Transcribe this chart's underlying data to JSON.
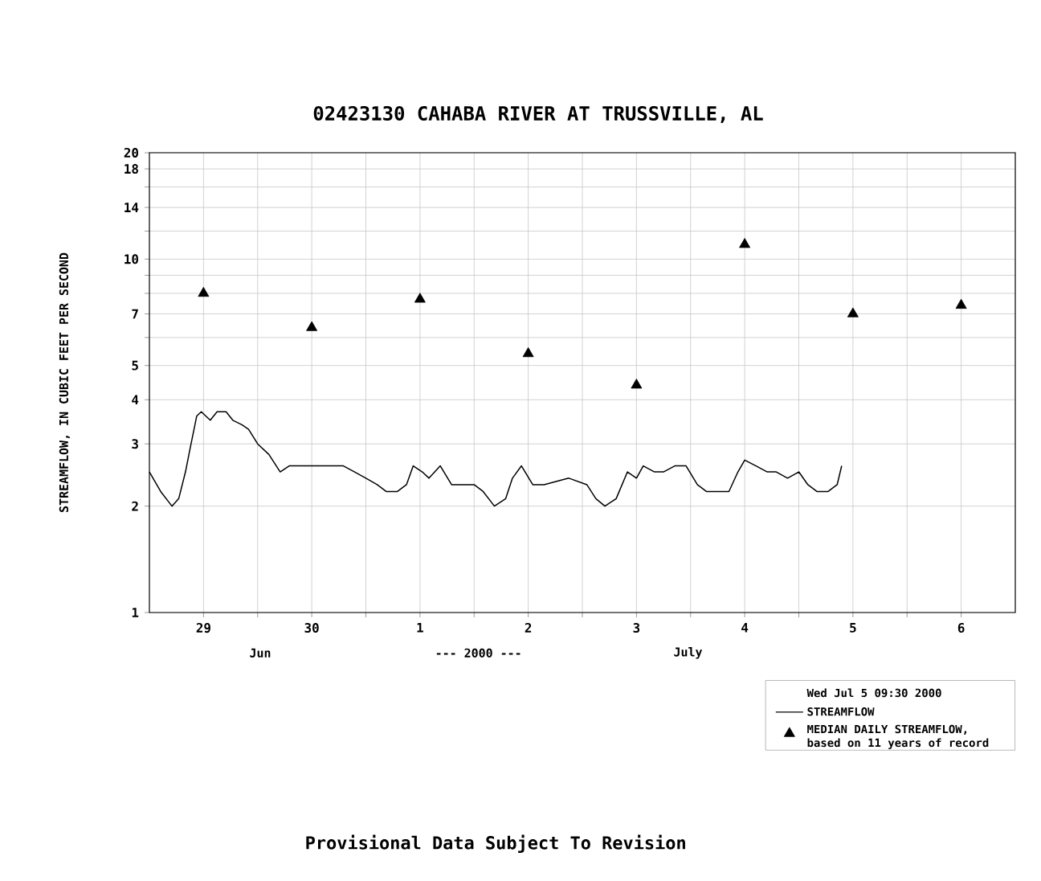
{
  "chart_data": {
    "type": "line",
    "title": "02423130 CAHABA RIVER AT TRUSSVILLE, AL",
    "ylabel": "STREAMFLOW, IN CUBIC FEET PER SECOND",
    "legend_title": "Wed Jul  5 09:30 2000",
    "annotations": [
      "Jun",
      "--- 2000 ---",
      "July",
      "Provisional Data Subject To Revision"
    ],
    "log": "y",
    "grid": true,
    "legend": "bottom right",
    "xlim": [
      "2000-06-29T00:00",
      "2000-07-07T00:00"
    ],
    "xticks": [
      {
        "value": "2000-06-29T12:00",
        "label": "29"
      },
      {
        "value": "2000-06-30T12:00",
        "label": "30"
      },
      {
        "value": "2000-07-01T12:00",
        "label": "1"
      },
      {
        "value": "2000-07-02T12:00",
        "label": "2"
      },
      {
        "value": "2000-07-03T12:00",
        "label": "3"
      },
      {
        "value": "2000-07-04T12:00",
        "label": "4"
      },
      {
        "value": "2000-07-05T12:00",
        "label": "5"
      },
      {
        "value": "2000-07-06T12:00",
        "label": "6"
      },
      {
        "value": "2000-06-30T00:00",
        "label": null
      },
      {
        "value": "2000-07-01T00:00",
        "label": null
      },
      {
        "value": "2000-07-02T00:00",
        "label": null
      },
      {
        "value": "2000-07-03T00:00",
        "label": null
      },
      {
        "value": "2000-07-04T00:00",
        "label": null
      },
      {
        "value": "2000-07-05T00:00",
        "label": null
      },
      {
        "value": "2000-07-06T00:00",
        "label": null
      }
    ],
    "ylim": [
      1,
      20
    ],
    "yticks": [
      1,
      2,
      3,
      4,
      5,
      7,
      10,
      14,
      18,
      20,
      {
        "value": 6,
        "label": null
      },
      {
        "value": 8,
        "label": null
      },
      {
        "value": 9,
        "label": null
      },
      {
        "value": 12,
        "label": null
      },
      {
        "value": 16,
        "label": null
      }
    ],
    "series": [
      {
        "name": "STREAMFLOW",
        "color": "#000000",
        "marker": "none",
        "line_style": "solid",
        "x": [
          "2000-06-29T00:00",
          "2000-06-29T02:30",
          "2000-06-29T05:00",
          "2000-06-29T06:30",
          "2000-06-29T08:00",
          "2000-06-29T09:00",
          "2000-06-29T10:30",
          "2000-06-29T11:30",
          "2000-06-29T13:30",
          "2000-06-29T15:00",
          "2000-06-29T17:00",
          "2000-06-29T18:30",
          "2000-06-29T20:30",
          "2000-06-29T22:00",
          "2000-06-30T00:00",
          "2000-06-30T02:30",
          "2000-06-30T05:00",
          "2000-06-30T07:00",
          "2000-06-30T09:30",
          "2000-06-30T12:00",
          "2000-06-30T14:30",
          "2000-06-30T16:30",
          "2000-06-30T19:00",
          "2000-06-30T21:30",
          "2000-07-01T00:00",
          "2000-07-01T02:30",
          "2000-07-01T04:30",
          "2000-07-01T07:00",
          "2000-07-01T09:00",
          "2000-07-01T10:30",
          "2000-07-01T12:30",
          "2000-07-01T14:00",
          "2000-07-01T16:30",
          "2000-07-01T19:00",
          "2000-07-01T21:30",
          "2000-07-02T00:00",
          "2000-07-02T02:00",
          "2000-07-02T04:30",
          "2000-07-02T07:00",
          "2000-07-02T08:30",
          "2000-07-02T10:30",
          "2000-07-02T13:00",
          "2000-07-02T15:30",
          "2000-07-02T21:00",
          "2000-07-03T01:00",
          "2000-07-03T03:00",
          "2000-07-03T05:00",
          "2000-07-03T07:30",
          "2000-07-03T10:00",
          "2000-07-03T12:00",
          "2000-07-03T13:30",
          "2000-07-03T16:00",
          "2000-07-03T18:00",
          "2000-07-03T20:30",
          "2000-07-03T23:00",
          "2000-07-04T01:30",
          "2000-07-04T03:30",
          "2000-07-04T06:00",
          "2000-07-04T08:30",
          "2000-07-04T10:30",
          "2000-07-04T12:00",
          "2000-07-04T14:30",
          "2000-07-04T17:00",
          "2000-07-04T19:00",
          "2000-07-04T21:30",
          "2000-07-05T00:00",
          "2000-07-05T02:00",
          "2000-07-05T04:00",
          "2000-07-05T06:30",
          "2000-07-05T08:30",
          "2000-07-05T09:30"
        ],
        "values": [
          2.5,
          2.2,
          2.0,
          2.1,
          2.5,
          2.9,
          3.6,
          3.7,
          3.5,
          3.7,
          3.7,
          3.5,
          3.4,
          3.3,
          3.0,
          2.8,
          2.5,
          2.6,
          2.6,
          2.6,
          2.6,
          2.6,
          2.6,
          2.5,
          2.4,
          2.3,
          2.2,
          2.2,
          2.3,
          2.6,
          2.5,
          2.4,
          2.6,
          2.3,
          2.3,
          2.3,
          2.2,
          2.0,
          2.1,
          2.4,
          2.6,
          2.3,
          2.3,
          2.4,
          2.3,
          2.1,
          2.0,
          2.1,
          2.5,
          2.4,
          2.6,
          2.5,
          2.5,
          2.6,
          2.6,
          2.3,
          2.2,
          2.2,
          2.2,
          2.5,
          2.7,
          2.6,
          2.5,
          2.5,
          2.4,
          2.5,
          2.3,
          2.2,
          2.2,
          2.3,
          2.6
        ]
      },
      {
        "name": "MEDIAN DAILY STREAMFLOW, based on 11 years of record",
        "type": "scatter",
        "color": "#000000",
        "marker": "triangle",
        "x": [
          "2000-06-29T12:00",
          "2000-06-30T12:00",
          "2000-07-01T12:00",
          "2000-07-02T12:00",
          "2000-07-03T12:00",
          "2000-07-04T12:00",
          "2000-07-05T12:00",
          "2000-07-06T12:00"
        ],
        "values": [
          8.0,
          6.4,
          7.7,
          5.4,
          4.4,
          11,
          7.0,
          7.4
        ]
      }
    ]
  }
}
